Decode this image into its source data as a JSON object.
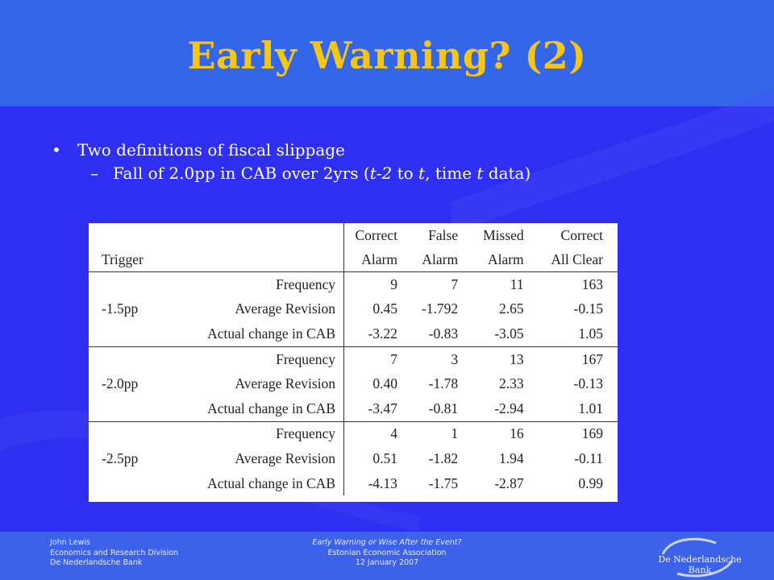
{
  "title": "Early Warning? (2)",
  "bullets": {
    "level1": "Two definitions of fiscal slippage",
    "level2_pre": "Fall of 2.0pp in CAB over 2yrs (",
    "level2_t2": "t-2",
    "level2_mid": " to ",
    "level2_t": "t",
    "level2_mid2": ", time ",
    "level2_t3": "t",
    "level2_post": " data)"
  },
  "table": {
    "header_row1": [
      "Correct",
      "False",
      "Missed",
      "Correct"
    ],
    "header_row2": [
      "Alarm",
      "Alarm",
      "Alarm",
      "All Clear"
    ],
    "trigger_label": "Trigger",
    "groups": [
      {
        "trigger": "-1.5pp",
        "rows": [
          {
            "label": "Frequency",
            "values": [
              "9",
              "7",
              "11",
              "163"
            ]
          },
          {
            "label": "Average Revision",
            "values": [
              "0.45",
              "-1.792",
              "2.65",
              "-0.15"
            ]
          },
          {
            "label": "Actual change in CAB",
            "values": [
              "-3.22",
              "-0.83",
              "-3.05",
              "1.05"
            ]
          }
        ]
      },
      {
        "trigger": "-2.0pp",
        "rows": [
          {
            "label": "Frequency",
            "values": [
              "7",
              "3",
              "13",
              "167"
            ]
          },
          {
            "label": "Average Revision",
            "values": [
              "0.40",
              "-1.78",
              "2.33",
              "-0.13"
            ]
          },
          {
            "label": "Actual change in CAB",
            "values": [
              "-3.47",
              "-0.81",
              "-2.94",
              "1.01"
            ]
          }
        ]
      },
      {
        "trigger": "-2.5pp",
        "rows": [
          {
            "label": "Frequency",
            "values": [
              "4",
              "1",
              "16",
              "169"
            ]
          },
          {
            "label": "Average Revision",
            "values": [
              "0.51",
              "-1.82",
              "1.94",
              "-0.11"
            ]
          },
          {
            "label": "Actual change in CAB",
            "values": [
              "-4.13",
              "-1.75",
              "-2.87",
              "0.99"
            ]
          }
        ]
      }
    ]
  },
  "footer": {
    "left": [
      "John Lewis",
      "Economics and Research Division",
      "De Nederlandsche Bank"
    ],
    "middle": [
      "Early Warning or Wise After the Event?",
      "Estonian Economic Association",
      "12 January 2007"
    ],
    "logo_text": "De Nederlandsche Bank"
  },
  "colors": {
    "background": "#2e2ff0",
    "title": "#f5c518",
    "text": "#ffffff"
  }
}
